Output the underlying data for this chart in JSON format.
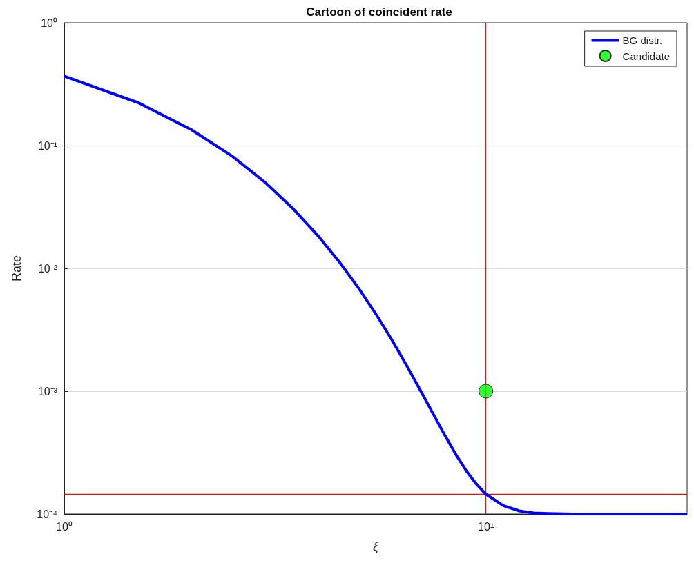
{
  "chart_data": {
    "type": "line",
    "title": "Cartoon of coincident rate",
    "xlabel": "ξ",
    "ylabel": "Rate",
    "log": "xy",
    "xlim": [
      1,
      30
    ],
    "xticks": [
      {
        "value": 1,
        "label": "10⁰"
      },
      {
        "value": 10,
        "label": "10¹"
      }
    ],
    "ylim": [
      0.0001,
      1
    ],
    "yticks": [
      {
        "value": 0.0001,
        "label": "10⁻⁴"
      },
      {
        "value": 0.001,
        "label": "10⁻³"
      },
      {
        "value": 0.01,
        "label": "10⁻²"
      },
      {
        "value": 0.1,
        "label": "10⁻¹"
      },
      {
        "value": 1,
        "label": "10⁰"
      }
    ],
    "grid": true,
    "legend": "top right",
    "series": [
      {
        "name": "BG distr.",
        "color": "#0000ff",
        "marker": "none",
        "line_style": "solid",
        "x": [
          1,
          1.5,
          2,
          2.5,
          3,
          3.5,
          4,
          4.5,
          5,
          5.5,
          6,
          6.5,
          7,
          7.5,
          8,
          8.5,
          9,
          9.5,
          10,
          11,
          12,
          13,
          14,
          16,
          20,
          25,
          30
        ],
        "values": [
          0.368,
          0.223,
          0.135,
          0.0822,
          0.0499,
          0.0303,
          0.0184,
          0.0112,
          0.00684,
          0.00419,
          0.00258,
          0.0016,
          0.00101,
          0.000653,
          0.000435,
          0.000303,
          0.000223,
          0.000175,
          0.000145,
          0.000117,
          0.000106,
          0.000102,
          0.000101,
          0.0001,
          0.0001,
          0.0001,
          0.0001
        ]
      },
      {
        "name": "Candidate",
        "type": "scatter",
        "color": "#00ff00",
        "marker": "circle",
        "x": [
          10
        ],
        "values": [
          0.001
        ]
      }
    ],
    "ref_lines": [
      {
        "axis": "x",
        "value": 10,
        "label": null,
        "color": "#ff0000"
      },
      {
        "axis": "y",
        "value": 0.000145,
        "label": null,
        "color": "#ff0000"
      }
    ]
  }
}
